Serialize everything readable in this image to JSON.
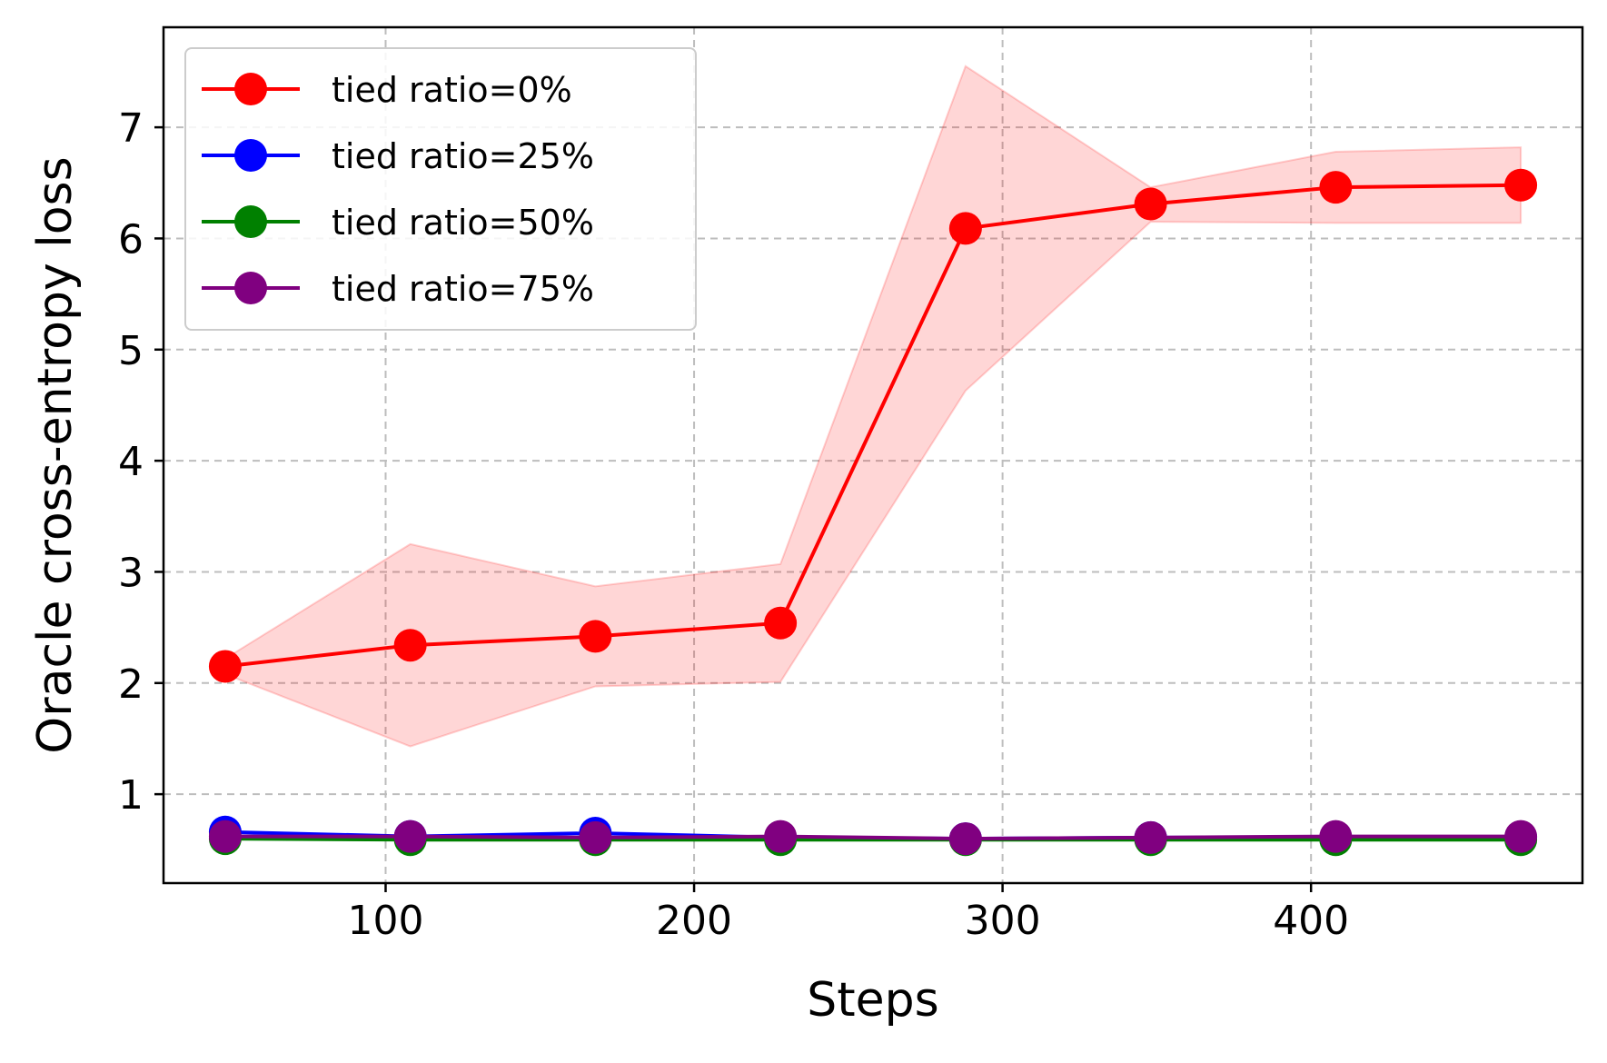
{
  "chart_data": {
    "type": "line",
    "xlabel": "Steps",
    "ylabel": "Oracle cross-entropy loss",
    "xlim": [
      28,
      488
    ],
    "ylim": [
      0.2,
      7.9
    ],
    "xticks": [
      100,
      200,
      300,
      400
    ],
    "yticks": [
      1,
      2,
      3,
      4,
      5,
      6,
      7
    ],
    "grid": true,
    "legend_position": "top-left",
    "x": [
      48,
      108,
      168,
      228,
      288,
      348,
      408,
      468
    ],
    "series": [
      {
        "name": "tied ratio=0%",
        "color": "#ff0000",
        "values": [
          2.15,
          2.34,
          2.42,
          2.54,
          6.09,
          6.31,
          6.46,
          6.48
        ],
        "band_lower": [
          2.08,
          1.43,
          1.97,
          2.01,
          4.63,
          6.15,
          6.14,
          6.14
        ],
        "band_upper": [
          2.22,
          3.25,
          2.87,
          3.07,
          7.55,
          6.46,
          6.78,
          6.82
        ]
      },
      {
        "name": "tied ratio=25%",
        "color": "#0000ff",
        "values": [
          0.66,
          0.62,
          0.65,
          0.61,
          0.6,
          0.61,
          0.61,
          0.61
        ]
      },
      {
        "name": "tied ratio=50%",
        "color": "#008000",
        "values": [
          0.6,
          0.59,
          0.59,
          0.59,
          0.59,
          0.59,
          0.59,
          0.59
        ]
      },
      {
        "name": "tied ratio=75%",
        "color": "#800080",
        "values": [
          0.62,
          0.62,
          0.61,
          0.62,
          0.6,
          0.61,
          0.62,
          0.62
        ]
      }
    ]
  }
}
